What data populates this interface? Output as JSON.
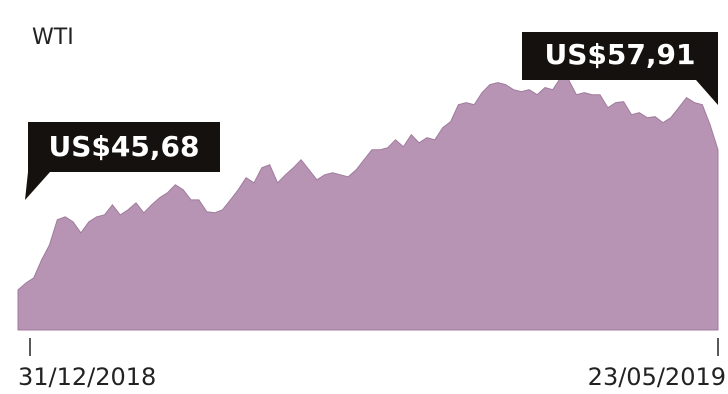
{
  "chart_data": {
    "type": "area",
    "title": "WTI",
    "categories": [
      "31/12/2018",
      null,
      null,
      null,
      null,
      null,
      null,
      null,
      null,
      null,
      null,
      null,
      null,
      null,
      null,
      null,
      null,
      null,
      null,
      null,
      null,
      null,
      null,
      null,
      null,
      null,
      null,
      null,
      null,
      null,
      null,
      null,
      null,
      null,
      null,
      null,
      null,
      null,
      null,
      null,
      null,
      null,
      null,
      null,
      null,
      null,
      null,
      null,
      null,
      null,
      null,
      null,
      null,
      null,
      null,
      null,
      null,
      null,
      null,
      null,
      null,
      null,
      null,
      null,
      null,
      null,
      null,
      null,
      null,
      null,
      null,
      null,
      null,
      null,
      null,
      null,
      null,
      null,
      null,
      null,
      null,
      null,
      null,
      null,
      null,
      null,
      null,
      null,
      null,
      "23/05/2019"
    ],
    "values": [
      45.68,
      46.29,
      46.73,
      48.3,
      49.61,
      51.8,
      52.06,
      51.62,
      50.66,
      51.62,
      52.06,
      52.23,
      53.11,
      52.23,
      52.67,
      53.28,
      52.41,
      53.11,
      53.72,
      54.16,
      54.85,
      54.42,
      53.54,
      53.54,
      52.5,
      52.41,
      52.67,
      53.54,
      54.42,
      55.47,
      55.03,
      56.34,
      56.6,
      55.03,
      55.73,
      56.34,
      57.04,
      56.16,
      55.29,
      55.73,
      55.9,
      55.73,
      55.55,
      56.16,
      57.04,
      57.91,
      57.91,
      58.09,
      58.78,
      58.17,
      59.22,
      58.52,
      58.96,
      58.78,
      59.83,
      60.36,
      61.84,
      62.02,
      61.84,
      62.89,
      63.59,
      63.76,
      63.59,
      63.15,
      62.98,
      63.15,
      62.71,
      63.33,
      63.15,
      64.2,
      64.02,
      62.71,
      62.89,
      62.71,
      62.71,
      61.58,
      62.02,
      62.1,
      60.97,
      61.14,
      60.71,
      60.79,
      60.27,
      60.71,
      61.58,
      62.45,
      62.02,
      61.84,
      60.09,
      57.91
    ],
    "value_labels": [
      "US$45,68",
      null,
      null,
      null,
      null,
      null,
      null,
      null,
      null,
      null,
      null,
      null,
      null,
      null,
      null,
      null,
      null,
      null,
      null,
      null,
      null,
      null,
      null,
      null,
      null,
      null,
      null,
      null,
      null,
      null,
      null,
      null,
      null,
      null,
      null,
      null,
      null,
      null,
      null,
      null,
      null,
      null,
      null,
      null,
      null,
      null,
      null,
      null,
      null,
      null,
      null,
      null,
      null,
      null,
      null,
      null,
      null,
      null,
      null,
      null,
      null,
      null,
      null,
      null,
      null,
      null,
      null,
      null,
      null,
      null,
      null,
      null,
      null,
      null,
      null,
      null,
      null,
      null,
      null,
      null,
      null,
      null,
      null,
      null,
      null,
      null,
      null,
      null,
      null,
      "US$57,91"
    ],
    "color": "#b894b4",
    "ylim": [
      42.19,
      66
    ]
  }
}
